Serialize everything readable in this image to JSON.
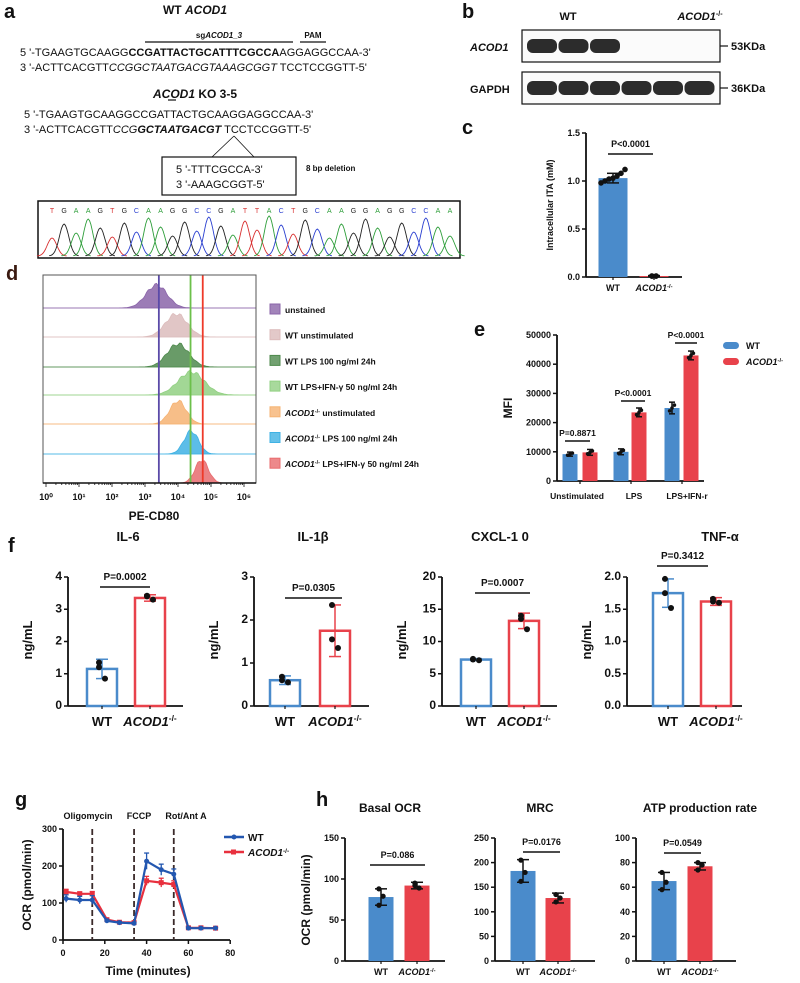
{
  "panel_labels": {
    "a": "a",
    "b": "b",
    "c": "c",
    "d": "d",
    "e": "e",
    "f": "f",
    "g": "g",
    "h": "h"
  },
  "panel_a": {
    "wt_title": [
      {
        "t": "WT "
      },
      {
        "t": "ACOD1",
        "i": true
      }
    ],
    "sg_label": [
      {
        "t": "sg"
      },
      {
        "t": "ACOD1_3",
        "i": true
      }
    ],
    "pam_label": "PAM",
    "wt_seq": [
      [
        {
          "t": "5  '-TGAAGTGCAAGG"
        },
        {
          "t": "CCGATTACTGCATTTCGCCA",
          "b": true
        },
        {
          "t": "AGGAGGCCAA-3'"
        }
      ],
      [
        {
          "t": "3  '-ACTTCACGTT"
        },
        {
          "t": "CCGGCTAATGACGTAAAGCGGT",
          "i": true
        },
        {
          "t": " TCCTCCGGTT-5'"
        }
      ]
    ],
    "ko_title": [
      {
        "t": "ACOD1",
        "i": true
      },
      {
        "t": " KO 3-5"
      }
    ],
    "ko_seq": [
      [
        {
          "t": "5  '-TGAAGTGCAAGGCCGATTACTGCAAGGAGGCCAA-3'"
        }
      ],
      [
        {
          "t": "3  '-ACTTCACGTT"
        },
        {
          "t": "CCG",
          "i": true
        },
        {
          "t": "GCTAATGACGT",
          "i": true,
          "b": true
        },
        {
          "t": " TCCTCCGGTT-5'"
        }
      ]
    ],
    "deletion_box": [
      "5  '-TTTCGCCA-3'",
      "3  '-AAAGCGGT-5'"
    ],
    "deletion_label": "8 bp deletion",
    "chromatogram_bases": "TGAAGTGCAAGGCCGATTACTGCAAGGAGGCCAA",
    "base_colors": {
      "A": "#2e9e3a",
      "C": "#2a3fd0",
      "G": "#222222",
      "T": "#d83030"
    }
  },
  "panel_b": {
    "columns": [
      "WT",
      "ACOD1-/-"
    ],
    "rows": [
      {
        "label": "ACOD1",
        "size": "53KDa",
        "bands": [
          1,
          1,
          1,
          0,
          0,
          0
        ]
      },
      {
        "label": "GAPDH",
        "size": "36KDa",
        "bands": [
          1,
          1,
          1,
          1,
          1,
          1
        ]
      }
    ]
  },
  "colors": {
    "wt": "#4a8bcb",
    "ko": "#e8424b",
    "wt_line": "#2357b0",
    "ko_line": "#e8303e"
  },
  "chart_data": [
    {
      "id": "c",
      "type": "bar",
      "title": "",
      "ylabel": "Intracellular ITA (mM)",
      "ylim": [
        0,
        1.5
      ],
      "yticks": [
        "0.0",
        "0.5",
        "1.0",
        "1.5"
      ],
      "ytick_values": [
        0,
        0.5,
        1,
        1.5
      ],
      "categories": [
        "WT",
        "ACOD1-/-"
      ],
      "values": [
        1.03,
        0.01
      ],
      "errors": [
        0.05,
        0.005
      ],
      "points": [
        [
          0.98,
          1.0,
          1.02,
          1.03,
          1.05,
          1.08,
          1.12
        ],
        [
          0.01,
          0.01,
          0.01,
          0.01
        ]
      ],
      "significance": "P<0.0001"
    },
    {
      "id": "d",
      "type": "histogram",
      "xlabel": "PE-CD80",
      "xscale": "log",
      "xticks": [
        "10⁰",
        "10¹",
        "10²",
        "10³",
        "10⁴",
        "10⁵",
        "10⁶"
      ],
      "xlim_log10": [
        0,
        6
      ],
      "series": [
        {
          "name": "unstained",
          "peak_log10": 3.35,
          "spread": 0.32,
          "color": "#8b65a9"
        },
        {
          "name": "WT unstimulated",
          "peak_log10": 3.95,
          "spread": 0.33,
          "color": "#dcbcbc"
        },
        {
          "name": "WT LPS 100 ng/ml 24h",
          "peak_log10": 4.0,
          "spread": 0.33,
          "color": "#4f8a4d"
        },
        {
          "name": "WT LPS+IFN-γ 50 ng/ml 24h",
          "peak_log10": 4.4,
          "spread": 0.4,
          "color": "#92d083"
        },
        {
          "name": "ACOD1-/- unstimulated",
          "peak_log10": 4.0,
          "spread": 0.25,
          "color": "#f6b373"
        },
        {
          "name": "ACOD1-/-  LPS 100 ng/ml 24h",
          "peak_log10": 4.4,
          "spread": 0.22,
          "color": "#3fb2e4"
        },
        {
          "name": "ACOD1-/- LPS+IFN-γ 50 ng/ml 24h",
          "peak_log10": 4.72,
          "spread": 0.2,
          "color": "#e86b6e"
        }
      ],
      "reference_lines": [
        {
          "log10": 3.42,
          "color": "#5b4aa8"
        },
        {
          "log10": 4.38,
          "color": "#6cc04a"
        },
        {
          "log10": 4.75,
          "color": "#ee3a2a"
        }
      ]
    },
    {
      "id": "e",
      "type": "bar",
      "ylabel": "MFI",
      "ylim": [
        0,
        50000
      ],
      "yticks": [
        "0",
        "10000",
        "20000",
        "30000",
        "40000",
        "50000"
      ],
      "ytick_values": [
        0,
        10000,
        20000,
        30000,
        40000,
        50000
      ],
      "categories": [
        "Unstimulated",
        "LPS",
        "LPS+IFN-r"
      ],
      "legend": [
        "WT",
        "ACOD1-/-"
      ],
      "legend_position": "top-right",
      "series": [
        {
          "name": "WT",
          "values": [
            9200,
            10000,
            25000
          ],
          "errors": [
            700,
            1000,
            2000
          ]
        },
        {
          "name": "ACOD1-/-",
          "values": [
            9800,
            23500,
            43000
          ],
          "errors": [
            1000,
            1500,
            1500
          ]
        }
      ],
      "significance": [
        "P=0.8871",
        "P<0.0001",
        "P<0.0001"
      ]
    },
    {
      "id": "f1",
      "type": "bar",
      "title": "IL-6",
      "ylabel": "ng/mL",
      "ylim": [
        0,
        4
      ],
      "yticks": [
        "0",
        "1",
        "2",
        "3",
        "4"
      ],
      "ytick_values": [
        0,
        1,
        2,
        3,
        4
      ],
      "categories": [
        "WT",
        "ACOD1-/-"
      ],
      "values": [
        1.15,
        3.35
      ],
      "errors": [
        0.3,
        0.1
      ],
      "points": [
        [
          1.35,
          0.85,
          1.2
        ],
        [
          3.42,
          3.3,
          3.4
        ]
      ],
      "significance": "P=0.0002"
    },
    {
      "id": "f2",
      "type": "bar",
      "title": "IL-1β",
      "ylabel": "ng/mL",
      "ylim": [
        0,
        3
      ],
      "yticks": [
        "0",
        "1",
        "2",
        "3"
      ],
      "ytick_values": [
        0,
        1,
        2,
        3
      ],
      "categories": [
        "WT",
        "ACOD1-/-"
      ],
      "values": [
        0.6,
        1.75
      ],
      "errors": [
        0.1,
        0.6
      ],
      "points": [
        [
          0.68,
          0.55,
          0.6
        ],
        [
          2.35,
          1.35,
          1.55
        ]
      ],
      "significance": "P=0.0305"
    },
    {
      "id": "f3",
      "type": "bar",
      "title": "CXCL-1 0",
      "ylabel": "ng/mL",
      "ylim": [
        0,
        20
      ],
      "yticks": [
        "0",
        "5",
        "10",
        "15",
        "20"
      ],
      "ytick_values": [
        0,
        5,
        10,
        15,
        20
      ],
      "categories": [
        "WT",
        "ACOD1-/-"
      ],
      "values": [
        7.2,
        13.2
      ],
      "errors": [
        0.15,
        1.2
      ],
      "points": [
        [
          7.2,
          7.1,
          7.3
        ],
        [
          14.0,
          11.9,
          13.5
        ]
      ],
      "significance": "P=0.0007"
    },
    {
      "id": "f4",
      "type": "bar",
      "title": "TNF-α",
      "ylabel": "ng/mL",
      "ylim": [
        0,
        2.0
      ],
      "yticks": [
        "0.0",
        "0.5",
        "1.0",
        "1.5",
        "2.0"
      ],
      "ytick_values": [
        0,
        0.5,
        1,
        1.5,
        2
      ],
      "categories": [
        "WT",
        "ACOD1-/-"
      ],
      "values": [
        1.75,
        1.62
      ],
      "errors": [
        0.22,
        0.06
      ],
      "points": [
        [
          1.97,
          1.52,
          1.75
        ],
        [
          1.66,
          1.6,
          1.62
        ]
      ],
      "significance": "P=0.3412"
    },
    {
      "id": "g",
      "type": "line",
      "xlabel": "Time (minutes)",
      "ylabel": "OCR (pmol/min)",
      "xlim": [
        0,
        80
      ],
      "ylim": [
        0,
        300
      ],
      "xticks": [
        "0",
        "20",
        "40",
        "60",
        "80"
      ],
      "xtick_values": [
        0,
        20,
        40,
        60,
        80
      ],
      "yticks": [
        "0",
        "100",
        "200",
        "300"
      ],
      "ytick_values": [
        0,
        100,
        200,
        300
      ],
      "x": [
        1.5,
        8,
        14,
        21,
        27,
        34,
        40,
        47,
        53,
        60,
        66,
        73
      ],
      "series": [
        {
          "name": "WT",
          "values": [
            112,
            108,
            108,
            52,
            47,
            45,
            213,
            190,
            178,
            32,
            32,
            32
          ],
          "errors": [
            10,
            10,
            12,
            4,
            3,
            3,
            22,
            15,
            14,
            3,
            2,
            2
          ]
        },
        {
          "name": "ACOD1-/-",
          "values": [
            130,
            125,
            125,
            55,
            48,
            47,
            160,
            155,
            150,
            33,
            33,
            32
          ],
          "errors": [
            7,
            5,
            6,
            3,
            3,
            3,
            12,
            12,
            10,
            3,
            2,
            2
          ]
        }
      ],
      "annotations": [
        {
          "x": 14,
          "label": "Oligomycin"
        },
        {
          "x": 34,
          "label": "FCCP"
        },
        {
          "x": 53,
          "label": "Rot/Ant A"
        }
      ],
      "legend_position": "top-right"
    },
    {
      "id": "h1",
      "type": "bar",
      "title": "Basal  OCR",
      "ylabel": "OCR (pmol/min)",
      "ylim": [
        0,
        150
      ],
      "yticks": [
        "0",
        "50",
        "100",
        "150"
      ],
      "ytick_values": [
        0,
        50,
        100,
        150
      ],
      "categories": [
        "WT",
        "ACOD1-/-"
      ],
      "values": [
        78,
        92
      ],
      "errors": [
        10,
        4
      ],
      "points": [
        [
          88,
          79,
          68
        ],
        [
          95,
          89,
          92
        ]
      ],
      "significance": "P=0.086"
    },
    {
      "id": "h2",
      "type": "bar",
      "title": "MRC",
      "ylabel": "",
      "ylim": [
        0,
        250
      ],
      "yticks": [
        "0",
        "50",
        "100",
        "150",
        "200",
        "250"
      ],
      "ytick_values": [
        0,
        50,
        100,
        150,
        200,
        250
      ],
      "categories": [
        "WT",
        "ACOD1-/-"
      ],
      "values": [
        183,
        128
      ],
      "errors": [
        23,
        10
      ],
      "points": [
        [
          205,
          180,
          162
        ],
        [
          135,
          128,
          120
        ]
      ],
      "significance": "P=0.0176"
    },
    {
      "id": "h3",
      "type": "bar",
      "title": "ATP production rate",
      "ylabel": "",
      "ylim": [
        0,
        100
      ],
      "yticks": [
        "0",
        "20",
        "40",
        "60",
        "80",
        "100"
      ],
      "ytick_values": [
        0,
        20,
        40,
        60,
        80,
        100
      ],
      "categories": [
        "WT",
        "ACOD1-/-"
      ],
      "values": [
        65,
        77
      ],
      "errors": [
        7,
        3
      ],
      "points": [
        [
          72,
          64,
          58
        ],
        [
          80,
          78,
          74
        ]
      ],
      "significance": "P=0.0549"
    }
  ]
}
